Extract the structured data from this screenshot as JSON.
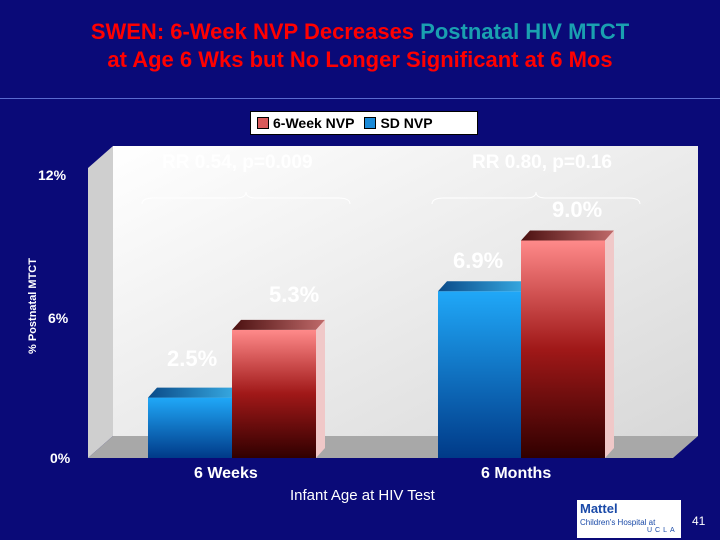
{
  "title": {
    "line1_part1": "SWEN: 6-Week NVP Decreases ",
    "line1_highlight": "Postnatal HIV MTCT",
    "line2": "at Age 6 Wks but No Longer Significant at 6 Mos",
    "color": "#ff0000",
    "highlight_color": "#1aa0b0"
  },
  "chart_data": {
    "type": "bar",
    "categories": [
      "6 Weeks",
      "6 Months"
    ],
    "series": [
      {
        "name": "6-Week NVP",
        "values": [
          5.3,
          9.0
        ],
        "color": "#d85a5a"
      },
      {
        "name": "SD NVP",
        "values": [
          2.5,
          6.9
        ],
        "color": "#1a8ad8"
      }
    ],
    "data_labels": [
      [
        "5.3%",
        "9.0%"
      ],
      [
        "2.5%",
        "6.9%"
      ]
    ],
    "ylabel": "% Postnatal MTCT",
    "xlabel": "Infant Age at HIV Test",
    "yticks": [
      "0%",
      "6%",
      "12%"
    ],
    "ylim": [
      0,
      12
    ],
    "legend_position": "top",
    "annotations": [
      "RR 0.54, p=0.009",
      "RR 0.80, p=0.16"
    ]
  },
  "logo": {
    "line1": "Mattel",
    "line2": "Children's Hospital at",
    "line3": "UCLA"
  },
  "page_number": "41"
}
